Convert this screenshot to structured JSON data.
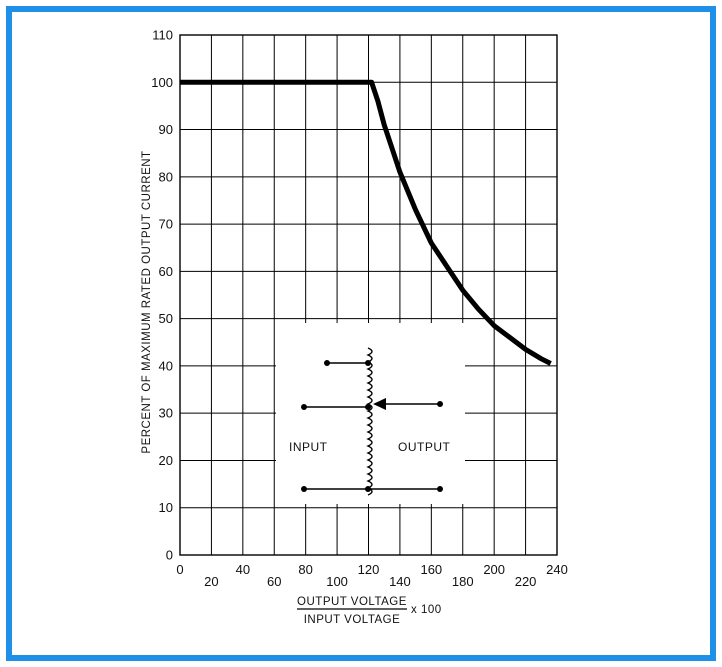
{
  "chart_data": {
    "type": "line",
    "title": "",
    "ylabel": "PERCENT OF MAXIMUM RATED OUTPUT CURRENT",
    "xlabel": {
      "numerator": "OUTPUT VOLTAGE",
      "denominator": "INPUT VOLTAGE",
      "multiplier": "x 100"
    },
    "xlim": [
      0,
      240
    ],
    "ylim": [
      0,
      110
    ],
    "grid": true,
    "x_ticks_upper": [
      "0",
      "40",
      "80",
      "120",
      "160",
      "200",
      "240"
    ],
    "x_ticks_lower": [
      "20",
      "60",
      "100",
      "140",
      "180",
      "220"
    ],
    "y_ticks": [
      "0",
      "10",
      "20",
      "30",
      "40",
      "50",
      "60",
      "70",
      "80",
      "90",
      "100",
      "110"
    ],
    "series": [
      {
        "x": [
          0,
          50,
          100,
          122,
          126,
          130,
          135,
          140,
          150,
          160,
          170,
          180,
          190,
          200,
          210,
          220,
          230,
          236
        ],
        "y": [
          100,
          100,
          100,
          100,
          96,
          91,
          86,
          81,
          73,
          66,
          61,
          56,
          52,
          48.5,
          46,
          43.5,
          41.5,
          40.5
        ]
      }
    ],
    "color": "#000000"
  },
  "inset": {
    "input_label": "INPUT",
    "output_label": "OUTPUT"
  },
  "frame_color": "#1e90e8"
}
